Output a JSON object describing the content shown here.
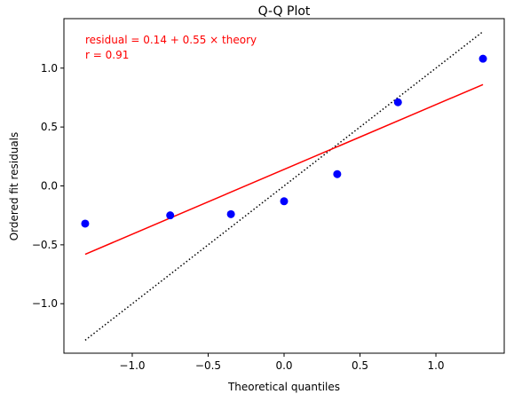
{
  "chart_data": {
    "type": "scatter",
    "title": "Q-Q Plot",
    "xlabel": "Theoretical quantiles",
    "ylabel": "Ordered fit residuals",
    "xlim": [
      -1.45,
      1.45
    ],
    "ylim": [
      -1.42,
      1.42
    ],
    "xticks": [
      -1.0,
      -0.5,
      0.0,
      0.5,
      1.0
    ],
    "xtick_labels": [
      "−1.0",
      "−0.5",
      "0.0",
      "0.5",
      "1.0"
    ],
    "yticks": [
      -1.0,
      -0.5,
      0.0,
      0.5,
      1.0
    ],
    "ytick_labels": [
      "−1.0",
      "−0.5",
      "0.0",
      "0.5",
      "1.0"
    ],
    "grid": false,
    "points": {
      "x": [
        -1.31,
        -0.75,
        -0.35,
        0.0,
        0.35,
        0.75,
        1.31
      ],
      "y": [
        -0.32,
        -0.25,
        -0.24,
        -0.13,
        0.1,
        0.71,
        1.08
      ],
      "color": "#0000ff"
    },
    "reference_line": {
      "x": [
        -1.31,
        1.31
      ],
      "y": [
        -1.31,
        1.31
      ],
      "style": "dotted",
      "color": "#000000"
    },
    "fit_line": {
      "intercept": 0.14,
      "slope": 0.55,
      "x": [
        -1.31,
        1.31
      ],
      "color": "#ff0000"
    },
    "annotations": [
      "residual = 0.14 + 0.55 × theory",
      "r = 0.91"
    ]
  }
}
